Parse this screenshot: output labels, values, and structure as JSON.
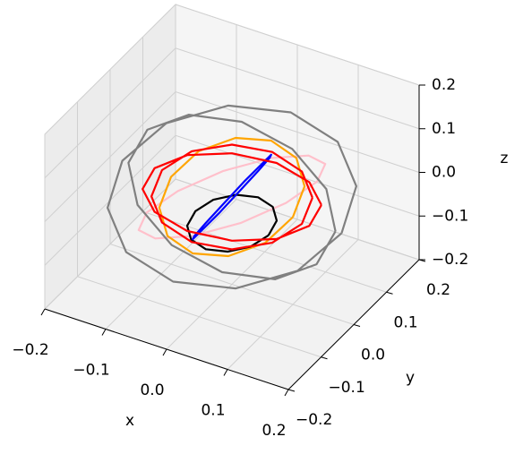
{
  "chart_data": {
    "type": "line3d",
    "xlabel": "x",
    "ylabel": "y",
    "zlabel": "z",
    "xlim": [
      -0.2,
      0.2
    ],
    "ylim": [
      -0.2,
      0.2
    ],
    "zlim": [
      -0.2,
      0.2
    ],
    "xticks": [
      {
        "value": -0.2,
        "label": "−0.2"
      },
      {
        "value": -0.1,
        "label": "−0.1"
      },
      {
        "value": 0,
        "label": "0.0"
      },
      0.1,
      0.2
    ],
    "yticks": [
      {
        "value": -0.2,
        "label": "−0.2"
      },
      {
        "value": -0.1,
        "label": "−0.1"
      },
      {
        "value": 0,
        "label": "0.0"
      },
      0.1,
      0.2
    ],
    "zticks": [
      {
        "value": -0.2,
        "label": "−0.2"
      },
      {
        "value": -0.1,
        "label": "−0.1"
      },
      {
        "value": 0,
        "label": "0.0"
      },
      0.1,
      0.2
    ],
    "grid": true,
    "series": [
      {
        "color": "#ffc0cb",
        "x": [
          0.14,
          0.121,
          0.07,
          0,
          -0.07,
          -0.121,
          -0.14,
          -0.121,
          -0.07,
          0,
          0.07,
          0.121,
          0.14
        ],
        "y": [
          0,
          0.06,
          0.104,
          0.12,
          0.104,
          0.06,
          0,
          -0.06,
          -0.104,
          -0.12,
          -0.104,
          -0.06,
          0
        ],
        "z": [
          0.1,
          0.087,
          0.05,
          0,
          -0.05,
          -0.087,
          -0.1,
          -0.087,
          -0.05,
          0,
          0.05,
          0.087,
          0.1
        ]
      },
      {
        "color": "#808080",
        "x": [
          0.18,
          0.156,
          0.09,
          0,
          -0.09,
          -0.156,
          -0.18,
          -0.156,
          -0.09,
          0,
          0.09,
          0.156,
          0.18,
          null,
          0.17,
          0.147,
          0.085,
          0,
          -0.085,
          -0.147,
          -0.17,
          -0.147,
          -0.085,
          0,
          0.085,
          0.147,
          0.17
        ],
        "y": [
          0,
          0.09,
          0.156,
          0.18,
          0.156,
          0.09,
          0,
          -0.09,
          -0.156,
          -0.18,
          -0.156,
          -0.09,
          0,
          null,
          0,
          0.015,
          0.026,
          0.03,
          0.026,
          0.015,
          0,
          -0.015,
          -0.026,
          -0.03,
          -0.026,
          -0.015,
          0
        ],
        "z": [
          0,
          0.03,
          0.052,
          0.06,
          0.052,
          0.03,
          0,
          -0.03,
          -0.052,
          -0.06,
          -0.052,
          -0.03,
          0,
          null,
          0,
          0.075,
          0.13,
          0.15,
          0.13,
          0.075,
          0,
          -0.075,
          -0.13,
          -0.15,
          -0.13,
          -0.075,
          0
        ]
      },
      {
        "color": "#ffa500",
        "x": [
          0.1,
          0.087,
          0.05,
          0,
          -0.05,
          -0.087,
          -0.1,
          -0.087,
          -0.05,
          0,
          0.05,
          0.087,
          0.1
        ],
        "y": [
          0,
          0.06,
          0.104,
          0.12,
          0.104,
          0.06,
          0,
          -0.06,
          -0.104,
          -0.12,
          -0.104,
          -0.06,
          0
        ],
        "z": [
          0,
          0.02,
          0.035,
          0.04,
          0.035,
          0.02,
          0,
          -0.02,
          -0.035,
          -0.04,
          -0.035,
          -0.02,
          0
        ]
      },
      {
        "color": "#000000",
        "x": [
          0.06,
          0.052,
          0.03,
          0,
          -0.03,
          -0.052,
          -0.06,
          -0.052,
          -0.03,
          0,
          0.03,
          0.052,
          0.06
        ],
        "y": [
          0,
          0.04,
          0.069,
          0.08,
          0.069,
          0.04,
          0,
          -0.04,
          -0.069,
          -0.08,
          -0.069,
          -0.04,
          0
        ],
        "z": [
          -0.06,
          -0.06,
          -0.06,
          -0.06,
          -0.06,
          -0.06,
          -0.06,
          -0.06,
          -0.06,
          -0.06,
          -0.06,
          -0.06,
          -0.06
        ]
      },
      {
        "color": "#0000ff",
        "x": [
          0.05,
          0.043,
          0.025,
          0,
          -0.025,
          -0.043,
          -0.05,
          -0.043,
          -0.025,
          0,
          0.025,
          0.043,
          0.05
        ],
        "y": [
          0,
          0.04,
          0.069,
          0.08,
          0.069,
          0.04,
          0,
          -0.04,
          -0.069,
          -0.08,
          -0.069,
          -0.04,
          0
        ],
        "z": [
          0.1,
          0.087,
          0.05,
          0,
          -0.05,
          -0.087,
          -0.1,
          -0.087,
          -0.05,
          0,
          0.05,
          0.087,
          0.1
        ]
      },
      {
        "color": "#ff0000",
        "x": [
          0.12,
          0.104,
          0.06,
          0,
          -0.06,
          -0.104,
          -0.12,
          -0.104,
          -0.06,
          0,
          0.06,
          0.104,
          0.12,
          null,
          0.1,
          0.087,
          0.05,
          0,
          -0.05,
          -0.087,
          -0.1,
          -0.087,
          -0.05,
          0,
          0.05,
          0.087,
          0.1
        ],
        "y": [
          0.05,
          0.043,
          0.025,
          0,
          -0.025,
          -0.043,
          -0.05,
          -0.043,
          -0.025,
          0,
          0.025,
          0.043,
          0.05,
          null,
          0.06,
          0.052,
          0.03,
          0,
          -0.03,
          -0.052,
          -0.06,
          -0.052,
          -0.03,
          0,
          0.03,
          0.052,
          0.06
        ],
        "z": [
          0,
          0.05,
          0.087,
          0.1,
          0.087,
          0.05,
          0,
          -0.05,
          -0.087,
          -0.1,
          -0.087,
          -0.05,
          0,
          null,
          0,
          0.06,
          0.104,
          0.12,
          0.104,
          0.06,
          0,
          -0.06,
          -0.104,
          -0.12,
          -0.104,
          -0.06,
          0
        ]
      }
    ]
  }
}
